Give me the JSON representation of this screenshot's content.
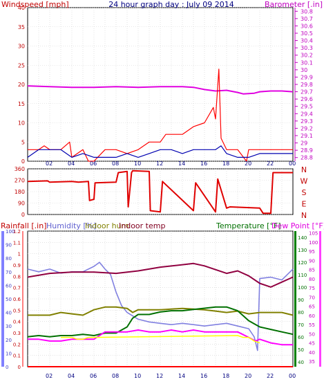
{
  "title": "24 hour graph day : July 09 2014",
  "colors": {
    "windspeed": "#ff0000",
    "windavg": "#0000b0",
    "barometer": "#e000e0",
    "direction": "#e00000",
    "rainfall": "#ff0000",
    "humidity": "#8080e0",
    "indoor_hum": "#808000",
    "indoor_temp": "#900040",
    "temperature": "#007000",
    "dew_point": "#ff00ff",
    "solar": "#ffff00",
    "label_red": "#c00000",
    "label_green": "#007000",
    "label_blue": "#4040c0",
    "label_olive": "#808000",
    "label_maroon": "#800020",
    "label_magenta": "#e000e0",
    "label_barometer": "#c000c0"
  },
  "chart_data": [
    {
      "id": "wind_baro",
      "type": "line",
      "left_label": "Windspeed [mph]",
      "right_label": "Barometer [.in]",
      "x_tick_labels": [
        "02",
        "04",
        "06",
        "08",
        "10",
        "12",
        "14",
        "16",
        "18",
        "20",
        "22",
        "00"
      ],
      "left_axis": {
        "range": [
          0,
          40
        ],
        "ticks": [
          "40",
          "35",
          "30",
          "25",
          "20",
          "15",
          "10",
          "5",
          "0"
        ]
      },
      "right_axis": {
        "range": [
          28.75,
          30.85
        ],
        "ticks": [
          "30.8",
          "30.7",
          "30.6",
          "30.5",
          "30.4",
          "30.3",
          "30.2",
          "30.1",
          "30",
          "29.9",
          "29.8",
          "29.7",
          "29.6",
          "29.5",
          "29.4",
          "29.3",
          "29.2",
          "29.1",
          "29",
          "28.9",
          "28.8"
        ]
      },
      "series": [
        {
          "key": "barometer",
          "axis": "right",
          "x": [
            0,
            2,
            4,
            6,
            8,
            10,
            12,
            14,
            15,
            16,
            17,
            18,
            19,
            19.5,
            20.5,
            21,
            22,
            23,
            24
          ],
          "values": [
            29.78,
            29.77,
            29.76,
            29.76,
            29.77,
            29.76,
            29.77,
            29.77,
            29.76,
            29.73,
            29.71,
            29.72,
            29.69,
            29.67,
            29.68,
            29.7,
            29.71,
            29.71,
            29.7
          ]
        },
        {
          "key": "windspeed",
          "axis": "left",
          "x": [
            0,
            1,
            1.5,
            2,
            3,
            3.8,
            4,
            5,
            5.5,
            6,
            7,
            8,
            9,
            10,
            11,
            12,
            12.5,
            13,
            14,
            15,
            16,
            16.8,
            17,
            17.3,
            17.5,
            18,
            19,
            19.8,
            20,
            21,
            22,
            23,
            24
          ],
          "values": [
            3,
            3,
            4,
            3,
            3,
            5,
            1,
            3,
            0,
            0,
            3,
            3,
            2,
            3,
            5,
            5,
            7,
            7,
            7,
            9,
            10,
            14,
            11,
            24,
            6,
            3,
            3,
            0,
            3,
            3,
            3,
            3,
            3
          ]
        },
        {
          "key": "windavg",
          "axis": "left",
          "x": [
            0,
            1,
            2,
            3,
            4,
            5,
            6,
            7,
            8,
            9,
            10,
            11,
            12,
            13,
            14,
            15,
            16,
            17,
            17.5,
            18,
            19,
            20,
            21,
            22,
            23,
            24
          ],
          "values": [
            1,
            3,
            3,
            3,
            1,
            2,
            1,
            1,
            1,
            2,
            1,
            2,
            3,
            3,
            2,
            3,
            3,
            3,
            4,
            2,
            1,
            1,
            2,
            2,
            2,
            2
          ]
        }
      ]
    },
    {
      "id": "direction",
      "type": "line",
      "right_label": "N W S E N",
      "compass_labels": [
        "N",
        "W",
        "S",
        "E",
        "N"
      ],
      "left_axis": {
        "range": [
          0,
          360
        ],
        "ticks": [
          "360",
          "270",
          "180",
          "90",
          "0"
        ]
      },
      "series": [
        {
          "key": "direction",
          "x": [
            0,
            1.8,
            2,
            4,
            4.6,
            5.5,
            5.6,
            6,
            6.1,
            8,
            8.2,
            9,
            9.1,
            9.4,
            9.5,
            11,
            11.1,
            12,
            12.2,
            15,
            15.2,
            17,
            17.2,
            18,
            18.3,
            21,
            21.3,
            22,
            22.2,
            24
          ],
          "values": [
            260,
            265,
            255,
            260,
            255,
            260,
            110,
            120,
            250,
            255,
            330,
            340,
            60,
            330,
            345,
            340,
            30,
            20,
            260,
            30,
            250,
            20,
            280,
            50,
            60,
            50,
            10,
            10,
            330,
            330
          ]
        }
      ]
    },
    {
      "id": "temp_hum",
      "type": "line",
      "legend": [
        "Rainfall [.in]",
        "Humidity [%]",
        "Indoor hum",
        "Indoor temp",
        "Temperature [°F]",
        "Dew Point [°F]"
      ],
      "x_tick_labels": [
        "02",
        "04",
        "06",
        "08",
        "10",
        "12",
        "14",
        "16",
        "18",
        "20",
        "22",
        "00"
      ],
      "rain_axis": {
        "range": [
          0,
          1.2
        ],
        "ticks": [
          "1.2",
          "1.1",
          "1",
          "0.9",
          "0.8",
          "0.7",
          "0.6",
          "0.5",
          "0.4",
          "0.3",
          "0.2",
          "0.1",
          "0"
        ]
      },
      "humidity_axis": {
        "range": [
          0,
          100
        ],
        "ticks": [
          "100",
          "90",
          "80",
          "70",
          "60",
          "50",
          "40",
          "30",
          "20",
          "10",
          "0"
        ]
      },
      "temperature_axis": {
        "range": [
          36,
          145
        ],
        "ticks": [
          "140",
          "130",
          "120",
          "110",
          "100",
          "90",
          "80",
          "70",
          "60",
          "50",
          "40"
        ]
      },
      "dewpoint_axis": {
        "range": [
          32,
          106
        ],
        "ticks": [
          "105",
          "100",
          "95",
          "90",
          "85",
          "80",
          "75",
          "70",
          "65",
          "60",
          "55",
          "50",
          "45",
          "40",
          "35"
        ]
      },
      "series": [
        {
          "key": "rainfall",
          "axis": "rain",
          "x": [
            0,
            24
          ],
          "values": [
            0,
            0
          ]
        },
        {
          "key": "humidity",
          "axis": "humidity",
          "x": [
            0,
            1,
            2,
            3,
            4,
            5,
            6,
            6.5,
            7,
            7.5,
            8,
            8.5,
            9,
            10,
            11,
            12,
            13,
            14,
            15,
            16,
            17,
            18,
            19,
            20,
            20.5,
            20.8,
            21,
            22,
            23,
            24
          ],
          "values": [
            72,
            70,
            72,
            69,
            70,
            70,
            74,
            77,
            72,
            68,
            55,
            45,
            40,
            35,
            33,
            32,
            31,
            32,
            31,
            30,
            31,
            32,
            30,
            28,
            22,
            12,
            65,
            66,
            64,
            72
          ]
        },
        {
          "key": "indoor_hum",
          "axis": "humidity",
          "x": [
            0,
            1,
            2,
            3,
            4,
            5,
            5.5,
            6,
            7,
            8,
            9,
            9.5,
            10,
            12,
            14,
            16,
            17,
            18,
            19,
            20,
            21,
            22,
            23,
            24
          ],
          "values": [
            38,
            38,
            38,
            40,
            39,
            38,
            40,
            42,
            44,
            44,
            43,
            40,
            42,
            42,
            43,
            42,
            41,
            40,
            41,
            39,
            40,
            40,
            40,
            38
          ]
        },
        {
          "key": "indoor_temp",
          "axis": "temperature",
          "x": [
            0,
            2,
            4,
            6,
            8,
            10,
            12,
            14,
            15,
            16,
            17,
            18,
            19,
            20,
            21,
            22,
            23,
            24
          ],
          "values": [
            108,
            111,
            112,
            112,
            111,
            113,
            116,
            118,
            119,
            117,
            114,
            111,
            113,
            109,
            103,
            100,
            104,
            108
          ]
        },
        {
          "key": "temperature",
          "axis": "temperature",
          "x": [
            0,
            1,
            2,
            3,
            4,
            5,
            6,
            7,
            8,
            9,
            9.5,
            10,
            11,
            12,
            13,
            14,
            15,
            16,
            17,
            18,
            19,
            20,
            21,
            22,
            23,
            24
          ],
          "values": [
            60,
            61,
            60,
            61,
            61,
            62,
            61,
            63,
            63,
            68,
            75,
            78,
            78,
            80,
            81,
            81,
            82,
            83,
            84,
            84,
            81,
            73,
            68,
            66,
            64,
            62
          ]
        },
        {
          "key": "dew_point",
          "axis": "dewpoint",
          "x": [
            0,
            1,
            2,
            3,
            4,
            5,
            6,
            7,
            8,
            9,
            10,
            11,
            12,
            13,
            14,
            15,
            16,
            17,
            18,
            19,
            20,
            20.6,
            21,
            22,
            23,
            24
          ],
          "values": [
            47,
            47,
            46,
            46,
            47,
            47,
            47,
            51,
            51,
            51,
            52,
            51,
            51,
            52,
            51,
            52,
            51,
            51,
            51,
            51,
            48,
            46,
            47,
            45,
            44,
            44
          ]
        },
        {
          "key": "solar",
          "axis": "dewpoint",
          "x": [
            3,
            3.5,
            4,
            4.5,
            5,
            5.5,
            6,
            19,
            19.5,
            20,
            20.5,
            21
          ],
          "values": [
            48,
            48,
            48,
            47,
            47,
            48,
            48,
            49,
            48,
            48,
            46,
            45
          ]
        }
      ]
    }
  ]
}
